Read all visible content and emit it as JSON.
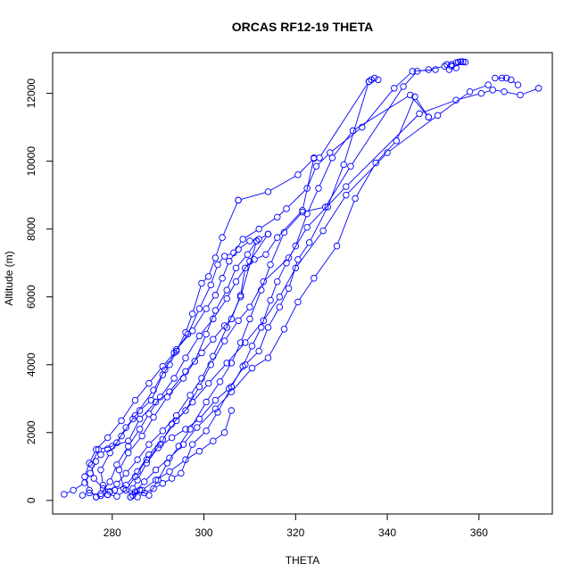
{
  "chart_data": {
    "type": "line",
    "title": "ORCAS RF12-19 THETA",
    "xlabel": "THETA",
    "ylabel": "Altitude (m)",
    "xlim": [
      267.0,
      376.0
    ],
    "ylim": [
      -400,
      13200
    ],
    "x_ticks": [
      280,
      300,
      320,
      340,
      360
    ],
    "y_ticks": [
      0,
      2000,
      4000,
      6000,
      8000,
      10000,
      12000
    ],
    "marker": "open-circle",
    "color": "#0000ff",
    "series": [
      {
        "points": [
          [
            269.5,
            180
          ],
          [
            271.5,
            300
          ],
          [
            274.0,
            520
          ],
          [
            275.2,
            800
          ],
          [
            276.4,
            1150
          ],
          [
            277.5,
            1350
          ],
          [
            279.0,
            1520
          ],
          [
            281.0,
            1700
          ],
          [
            283.0,
            2150
          ],
          [
            284.5,
            2400
          ],
          [
            286.0,
            2650
          ],
          [
            288.5,
            2950
          ],
          [
            291.0,
            3700
          ],
          [
            292.5,
            4000
          ],
          [
            294.0,
            4400
          ],
          [
            296.0,
            4950
          ],
          [
            297.5,
            5500
          ],
          [
            299.5,
            6400
          ],
          [
            301.0,
            6600
          ],
          [
            302.5,
            7150
          ],
          [
            304.0,
            7750
          ],
          [
            307.5,
            8850
          ]
        ]
      },
      {
        "points": [
          [
            307.5,
            8850
          ],
          [
            314.0,
            9100
          ],
          [
            320.5,
            9600
          ],
          [
            324.0,
            10080
          ],
          [
            325.2,
            10100
          ],
          [
            336.0,
            12350
          ],
          [
            336.5,
            12400
          ],
          [
            337.2,
            12450
          ],
          [
            338.0,
            12400
          ]
        ]
      },
      {
        "points": [
          [
            336.0,
            12350
          ],
          [
            330.5,
            9900
          ],
          [
            327.0,
            8650
          ],
          [
            323.0,
            7600
          ],
          [
            320.5,
            7100
          ],
          [
            318.5,
            6250
          ],
          [
            316.5,
            5700
          ],
          [
            314.0,
            5100
          ],
          [
            312.0,
            4400
          ],
          [
            309.0,
            4000
          ],
          [
            305.5,
            3300
          ],
          [
            302.5,
            2950
          ],
          [
            299.0,
            2400
          ],
          [
            296.0,
            2100
          ],
          [
            293.0,
            1850
          ],
          [
            290.0,
            1550
          ],
          [
            287.5,
            1100
          ],
          [
            285.5,
            600
          ],
          [
            284.5,
            350
          ],
          [
            285.5,
            100
          ],
          [
            287.0,
            220
          ],
          [
            289.0,
            350
          ],
          [
            291.0,
            500
          ],
          [
            293.0,
            650
          ],
          [
            295.0,
            800
          ],
          [
            297.5,
            1650
          ],
          [
            300.5,
            2050
          ],
          [
            303.0,
            2600
          ],
          [
            306.0,
            3350
          ],
          [
            308.5,
            3950
          ],
          [
            310.5,
            4550
          ],
          [
            312.5,
            5100
          ],
          [
            314.5,
            5900
          ],
          [
            316.0,
            6450
          ],
          [
            318.0,
            7000
          ],
          [
            320.0,
            7500
          ],
          [
            322.5,
            8450
          ],
          [
            325.0,
            9200
          ],
          [
            328.0,
            10100
          ],
          [
            332.5,
            10900
          ],
          [
            345.0,
            11950
          ],
          [
            349.0,
            11300
          ]
        ]
      },
      {
        "points": [
          [
            349.0,
            11300
          ],
          [
            346.0,
            11900
          ],
          [
            342.0,
            10600
          ],
          [
            337.5,
            9950
          ],
          [
            333.0,
            8900
          ],
          [
            329.0,
            7500
          ],
          [
            324.0,
            6550
          ],
          [
            320.5,
            5850
          ],
          [
            317.5,
            5050
          ],
          [
            314.0,
            4200
          ],
          [
            310.5,
            3900
          ],
          [
            306.0,
            3200
          ],
          [
            302.5,
            2700
          ],
          [
            298.5,
            2150
          ],
          [
            295.5,
            1650
          ],
          [
            292.5,
            1250
          ],
          [
            289.5,
            900
          ],
          [
            287.0,
            550
          ],
          [
            285.0,
            250
          ],
          [
            284.0,
            100
          ]
        ]
      },
      {
        "points": [
          [
            284.0,
            100
          ],
          [
            286.0,
            300
          ],
          [
            288.0,
            150
          ],
          [
            290.0,
            600
          ],
          [
            292.0,
            1100
          ],
          [
            294.5,
            1600
          ],
          [
            297.0,
            2100
          ],
          [
            300.5,
            2900
          ],
          [
            303.5,
            3500
          ],
          [
            306.0,
            4050
          ],
          [
            308.0,
            4650
          ],
          [
            310.0,
            5350
          ],
          [
            312.5,
            6200
          ],
          [
            314.5,
            6950
          ],
          [
            317.5,
            7900
          ],
          [
            321.5,
            8500
          ],
          [
            326.5,
            8650
          ],
          [
            332.0,
            9850
          ],
          [
            343.5,
            12200
          ],
          [
            346.5,
            12650
          ],
          [
            349.0,
            12700
          ],
          [
            352.5,
            12800
          ],
          [
            354.0,
            12850
          ],
          [
            355.5,
            12920
          ],
          [
            356.5,
            12930
          ]
        ]
      },
      {
        "points": [
          [
            356.5,
            12930
          ],
          [
            353.5,
            12700
          ],
          [
            355.0,
            12750
          ],
          [
            354.0,
            12800
          ],
          [
            353.0,
            12850
          ],
          [
            355.0,
            12900
          ],
          [
            356.0,
            12930
          ],
          [
            357.0,
            12920
          ]
        ]
      },
      {
        "points": [
          [
            373.0,
            12150
          ],
          [
            369.0,
            11950
          ],
          [
            365.5,
            12050
          ],
          [
            363.0,
            12100
          ],
          [
            360.5,
            12000
          ],
          [
            355.0,
            11800
          ],
          [
            347.0,
            11400
          ],
          [
            331.0,
            9250
          ],
          [
            322.5,
            8050
          ],
          [
            318.5,
            7150
          ],
          [
            313.0,
            6450
          ],
          [
            310.0,
            5700
          ],
          [
            307.5,
            5300
          ],
          [
            304.5,
            4700
          ],
          [
            301.5,
            4000
          ],
          [
            299.0,
            3350
          ],
          [
            296.0,
            2650
          ],
          [
            293.0,
            2250
          ],
          [
            290.5,
            1650
          ],
          [
            287.5,
            1200
          ],
          [
            285.0,
            700
          ],
          [
            283.0,
            300
          ],
          [
            281.0,
            120
          ],
          [
            279.0,
            170
          ]
        ]
      },
      {
        "points": [
          [
            279.0,
            170
          ],
          [
            278.0,
            450
          ],
          [
            277.5,
            900
          ],
          [
            279.5,
            1400
          ],
          [
            282.0,
            1900
          ],
          [
            285.0,
            2500
          ],
          [
            289.0,
            3250
          ],
          [
            291.5,
            3850
          ],
          [
            294.0,
            4450
          ],
          [
            297.5,
            5000
          ],
          [
            300.5,
            5650
          ],
          [
            302.5,
            6050
          ],
          [
            304.0,
            6550
          ],
          [
            305.5,
            7050
          ],
          [
            307.5,
            7400
          ],
          [
            310.0,
            7650
          ],
          [
            312.0,
            7700
          ],
          [
            314.0,
            7850
          ]
        ]
      },
      {
        "points": [
          [
            314.0,
            7850
          ],
          [
            310.0,
            7050
          ],
          [
            307.0,
            6450
          ],
          [
            305.0,
            5950
          ],
          [
            302.0,
            5350
          ],
          [
            299.0,
            4850
          ],
          [
            296.0,
            4200
          ],
          [
            293.5,
            3600
          ],
          [
            290.5,
            3050
          ],
          [
            288.0,
            2550
          ],
          [
            286.0,
            2100
          ],
          [
            283.5,
            1600
          ],
          [
            281.0,
            1050
          ],
          [
            279.5,
            550
          ],
          [
            277.5,
            200
          ],
          [
            276.5,
            100
          ]
        ]
      },
      {
        "points": [
          [
            276.5,
            100
          ],
          [
            275.0,
            300
          ],
          [
            274.0,
            700
          ],
          [
            275.0,
            1100
          ],
          [
            276.5,
            1500
          ],
          [
            279.0,
            1850
          ],
          [
            282.0,
            2350
          ],
          [
            285.0,
            2950
          ],
          [
            288.0,
            3450
          ],
          [
            291.0,
            3950
          ],
          [
            293.5,
            4350
          ],
          [
            296.5,
            4900
          ],
          [
            299.0,
            5650
          ],
          [
            301.5,
            6350
          ],
          [
            303.0,
            6950
          ],
          [
            304.5,
            7200
          ],
          [
            306.5,
            7300
          ],
          [
            308.5,
            7700
          ],
          [
            312.0,
            8000
          ],
          [
            316.0,
            8350
          ],
          [
            318.0,
            8600
          ],
          [
            322.5,
            9200
          ],
          [
            324.5,
            9850
          ],
          [
            327.5,
            10250
          ],
          [
            334.5,
            11000
          ],
          [
            341.5,
            12150
          ],
          [
            345.5,
            12650
          ],
          [
            350.5,
            12700
          ]
        ]
      },
      {
        "points": [
          [
            362.0,
            12250
          ],
          [
            358.0,
            12050
          ],
          [
            351.0,
            11350
          ],
          [
            340.0,
            10250
          ],
          [
            331.0,
            9000
          ],
          [
            326.0,
            7950
          ],
          [
            320.0,
            6850
          ],
          [
            316.5,
            6000
          ],
          [
            313.0,
            5300
          ],
          [
            309.0,
            4650
          ],
          [
            305.0,
            4050
          ],
          [
            301.0,
            3450
          ],
          [
            297.5,
            2900
          ],
          [
            294.0,
            2350
          ],
          [
            291.0,
            1800
          ],
          [
            288.0,
            1350
          ],
          [
            285.5,
            850
          ],
          [
            283.0,
            450
          ],
          [
            280.5,
            300
          ],
          [
            278.0,
            350
          ],
          [
            276.0,
            650
          ],
          [
            275.5,
            1050
          ],
          [
            277.0,
            1500
          ],
          [
            280.0,
            1600
          ],
          [
            283.5,
            1750
          ],
          [
            286.0,
            2400
          ],
          [
            289.5,
            2900
          ],
          [
            292.5,
            3200
          ],
          [
            296.0,
            3800
          ],
          [
            299.5,
            4350
          ],
          [
            302.0,
            4750
          ],
          [
            304.5,
            5150
          ],
          [
            306.0,
            5350
          ],
          [
            308.0,
            6050
          ],
          [
            309.0,
            6850
          ],
          [
            311.0,
            7100
          ],
          [
            313.5,
            7250
          ],
          [
            316.0,
            7750
          ],
          [
            321.5,
            8550
          ],
          [
            324.0,
            10100
          ]
        ]
      },
      {
        "points": [
          [
            365.0,
            12450
          ],
          [
            363.5,
            12450
          ],
          [
            366.0,
            12450
          ],
          [
            367.0,
            12400
          ],
          [
            368.5,
            12250
          ]
        ]
      },
      {
        "points": [
          [
            306.0,
            2650
          ],
          [
            304.5,
            2000
          ],
          [
            302.0,
            1750
          ],
          [
            299.0,
            1450
          ],
          [
            296.0,
            1200
          ],
          [
            292.5,
            850
          ],
          [
            289.5,
            600
          ],
          [
            286.5,
            300
          ],
          [
            284.5,
            150
          ],
          [
            282.5,
            350
          ],
          [
            281.5,
            900
          ],
          [
            283.5,
            1400
          ],
          [
            286.5,
            1900
          ],
          [
            289.0,
            2450
          ],
          [
            292.0,
            3050
          ],
          [
            295.5,
            3600
          ],
          [
            298.0,
            4100
          ],
          [
            300.5,
            4900
          ],
          [
            302.5,
            5600
          ],
          [
            305.0,
            6200
          ],
          [
            307.0,
            6850
          ],
          [
            309.5,
            7250
          ],
          [
            311.5,
            7650
          ]
        ]
      },
      {
        "points": [
          [
            311.5,
            7650
          ],
          [
            308.0,
            6000
          ],
          [
            305.0,
            5100
          ],
          [
            302.0,
            4250
          ],
          [
            299.5,
            3600
          ],
          [
            297.0,
            3100
          ],
          [
            294.0,
            2500
          ],
          [
            291.0,
            2050
          ],
          [
            288.0,
            1650
          ],
          [
            285.5,
            1200
          ],
          [
            283.0,
            800
          ],
          [
            281.0,
            480
          ],
          [
            279.5,
            260
          ],
          [
            277.5,
            140
          ],
          [
            275.0,
            220
          ],
          [
            273.5,
            150
          ]
        ]
      }
    ]
  }
}
